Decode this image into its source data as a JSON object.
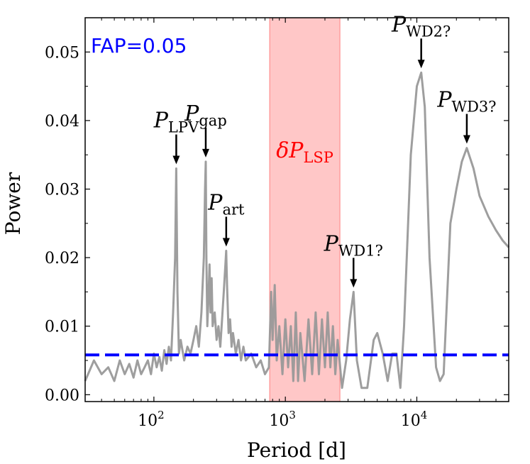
{
  "chart_data": {
    "type": "line",
    "title": "",
    "xlabel": "Period [d]",
    "ylabel": "Power",
    "x_scale": "log",
    "xlim": [
      30,
      50000
    ],
    "ylim": [
      -0.001,
      0.055
    ],
    "x_ticks": [
      {
        "value": 100,
        "label": "10",
        "exponent": "2"
      },
      {
        "value": 1000,
        "label": "10",
        "exponent": "3"
      },
      {
        "value": 10000,
        "label": "10",
        "exponent": "4"
      }
    ],
    "y_ticks": [
      {
        "value": 0.0,
        "label": "0.00"
      },
      {
        "value": 0.01,
        "label": "0.01"
      },
      {
        "value": 0.02,
        "label": "0.02"
      },
      {
        "value": 0.03,
        "label": "0.03"
      },
      {
        "value": 0.04,
        "label": "0.04"
      },
      {
        "value": 0.05,
        "label": "0.05"
      }
    ],
    "grid": false,
    "series": [
      {
        "color": "#999999",
        "points": [
          [
            30,
            0.002
          ],
          [
            35,
            0.005
          ],
          [
            40,
            0.003
          ],
          [
            45,
            0.004
          ],
          [
            50,
            0.002
          ],
          [
            55,
            0.005
          ],
          [
            60,
            0.003
          ],
          [
            65,
            0.0045
          ],
          [
            70,
            0.0025
          ],
          [
            75,
            0.005
          ],
          [
            80,
            0.003
          ],
          [
            85,
            0.004
          ],
          [
            90,
            0.005
          ],
          [
            95,
            0.003
          ],
          [
            100,
            0.006
          ],
          [
            105,
            0.004
          ],
          [
            110,
            0.0055
          ],
          [
            115,
            0.0035
          ],
          [
            120,
            0.0065
          ],
          [
            125,
            0.0045
          ],
          [
            130,
            0.007
          ],
          [
            135,
            0.005
          ],
          [
            140,
            0.012
          ],
          [
            145,
            0.02
          ],
          [
            148,
            0.033
          ],
          [
            151,
            0.015
          ],
          [
            155,
            0.006
          ],
          [
            160,
            0.008
          ],
          [
            170,
            0.005
          ],
          [
            180,
            0.007
          ],
          [
            190,
            0.006
          ],
          [
            200,
            0.008
          ],
          [
            210,
            0.01
          ],
          [
            220,
            0.007
          ],
          [
            230,
            0.012
          ],
          [
            240,
            0.02
          ],
          [
            245,
            0.03
          ],
          [
            248,
            0.034
          ],
          [
            251,
            0.02
          ],
          [
            255,
            0.01
          ],
          [
            260,
            0.014
          ],
          [
            265,
            0.019
          ],
          [
            270,
            0.012
          ],
          [
            275,
            0.017
          ],
          [
            280,
            0.01
          ],
          [
            290,
            0.012
          ],
          [
            300,
            0.008
          ],
          [
            310,
            0.01
          ],
          [
            320,
            0.007
          ],
          [
            330,
            0.011
          ],
          [
            340,
            0.015
          ],
          [
            350,
            0.019
          ],
          [
            355,
            0.021
          ],
          [
            360,
            0.016
          ],
          [
            370,
            0.009
          ],
          [
            380,
            0.011
          ],
          [
            390,
            0.007
          ],
          [
            400,
            0.009
          ],
          [
            420,
            0.006
          ],
          [
            440,
            0.008
          ],
          [
            460,
            0.005
          ],
          [
            480,
            0.007
          ],
          [
            500,
            0.005
          ],
          [
            550,
            0.006
          ],
          [
            600,
            0.004
          ],
          [
            650,
            0.005
          ],
          [
            700,
            0.003
          ],
          [
            750,
            0.004
          ],
          [
            780,
            0.015
          ],
          [
            800,
            0.008
          ],
          [
            830,
            0.016
          ],
          [
            860,
            0.005
          ],
          [
            900,
            0.01
          ],
          [
            950,
            0.003
          ],
          [
            1000,
            0.011
          ],
          [
            1050,
            0.004
          ],
          [
            1100,
            0.01
          ],
          [
            1150,
            0.002
          ],
          [
            1200,
            0.012
          ],
          [
            1250,
            0.002
          ],
          [
            1300,
            0.009
          ],
          [
            1400,
            0.002
          ],
          [
            1500,
            0.011
          ],
          [
            1600,
            0.003
          ],
          [
            1700,
            0.012
          ],
          [
            1800,
            0.003
          ],
          [
            1900,
            0.011
          ],
          [
            2000,
            0.004
          ],
          [
            2100,
            0.012
          ],
          [
            2200,
            0.004
          ],
          [
            2300,
            0.01
          ],
          [
            2400,
            0.003
          ],
          [
            2500,
            0.008
          ],
          [
            2700,
            0.001
          ],
          [
            2900,
            0.005
          ],
          [
            3100,
            0.011
          ],
          [
            3300,
            0.015
          ],
          [
            3500,
            0.005
          ],
          [
            3800,
            0.001
          ],
          [
            4200,
            0.001
          ],
          [
            4700,
            0.008
          ],
          [
            5000,
            0.009
          ],
          [
            5500,
            0.006
          ],
          [
            6000,
            0.002
          ],
          [
            6500,
            0.006
          ],
          [
            7000,
            0.006
          ],
          [
            7500,
            0.001
          ],
          [
            8000,
            0.01
          ],
          [
            9000,
            0.035
          ],
          [
            10000,
            0.045
          ],
          [
            10800,
            0.047
          ],
          [
            11500,
            0.042
          ],
          [
            12500,
            0.02
          ],
          [
            14000,
            0.004
          ],
          [
            15000,
            0.002
          ],
          [
            16000,
            0.003
          ],
          [
            18000,
            0.025
          ],
          [
            20000,
            0.03
          ],
          [
            22000,
            0.034
          ],
          [
            24000,
            0.036
          ],
          [
            27000,
            0.033
          ],
          [
            30000,
            0.029
          ],
          [
            35000,
            0.026
          ],
          [
            40000,
            0.024
          ],
          [
            45000,
            0.0225
          ],
          [
            50000,
            0.0215
          ]
        ]
      }
    ],
    "fap_line": {
      "label": "FAP=0.05",
      "value": 0.0058,
      "color": "#0000ff"
    },
    "band": {
      "label": "δP",
      "label_sub": "LSP",
      "from": 760,
      "to": 2600,
      "color": "#ff9999"
    },
    "annotations": [
      {
        "label": "P",
        "sub": "LPV",
        "x": 148,
        "y": 0.033
      },
      {
        "label": "P",
        "sub": "gap",
        "x": 248,
        "y": 0.034
      },
      {
        "label": "P",
        "sub": "art",
        "x": 355,
        "y": 0.021
      },
      {
        "label": "P",
        "sub": "WD1?",
        "x": 3300,
        "y": 0.015
      },
      {
        "label": "P",
        "sub": "WD2?",
        "x": 10800,
        "y": 0.047
      },
      {
        "label": "P",
        "sub": "WD3?",
        "x": 24000,
        "y": 0.036
      }
    ]
  }
}
